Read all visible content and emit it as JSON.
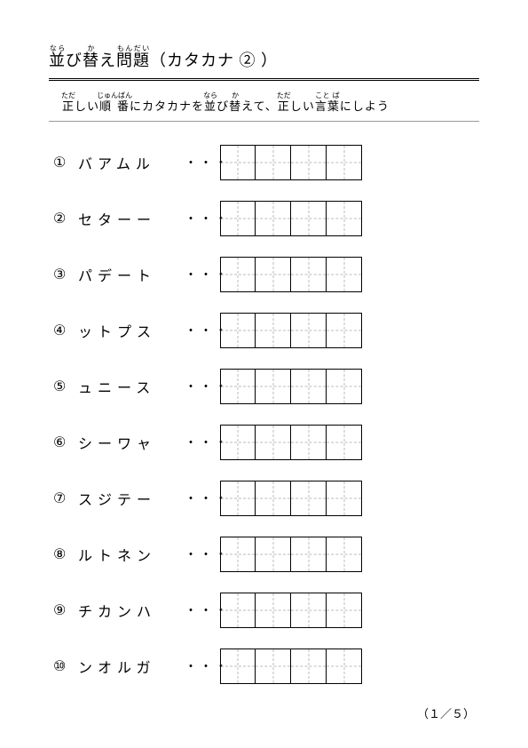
{
  "title": {
    "part1": "並",
    "part1_rt": "なら",
    "part2": "び",
    "part3": "替",
    "part3_rt": "か",
    "part4": "え",
    "part5": "問題",
    "part5_rt": "もんだい",
    "part6": "（カタカナ ② ）"
  },
  "instruction": {
    "p1": "正",
    "p1_rt": "ただ",
    "p2": "しい",
    "p3": "順番",
    "p3_rt": "じゅんばん",
    "p4": "にカタカナを",
    "p5": "並",
    "p5_rt": "なら",
    "p6": "び",
    "p7": "替",
    "p7_rt": "か",
    "p8": "えて、",
    "p9": "正",
    "p9_rt": "ただ",
    "p10": "しい",
    "p11": "言葉",
    "p11_rt": "こと ば",
    "p12": "にしよう"
  },
  "dots": "・・・",
  "items": [
    {
      "num": "①",
      "text": "バアムル"
    },
    {
      "num": "②",
      "text": "セターー"
    },
    {
      "num": "③",
      "text": "パデート"
    },
    {
      "num": "④",
      "text": "ットプス"
    },
    {
      "num": "⑤",
      "text": "ュニース"
    },
    {
      "num": "⑥",
      "text": "シーワャ"
    },
    {
      "num": "⑦",
      "text": "スジテー"
    },
    {
      "num": "⑧",
      "text": "ルトネン"
    },
    {
      "num": "⑨",
      "text": "チカンハ"
    },
    {
      "num": "⑩",
      "text": "ンオルガ"
    }
  ],
  "cells_per_row": 4,
  "page_number": "（１／５）",
  "colors": {
    "text": "#000000",
    "background": "#ffffff",
    "guide": "#bbbbbb",
    "light_rule": "#999999"
  }
}
